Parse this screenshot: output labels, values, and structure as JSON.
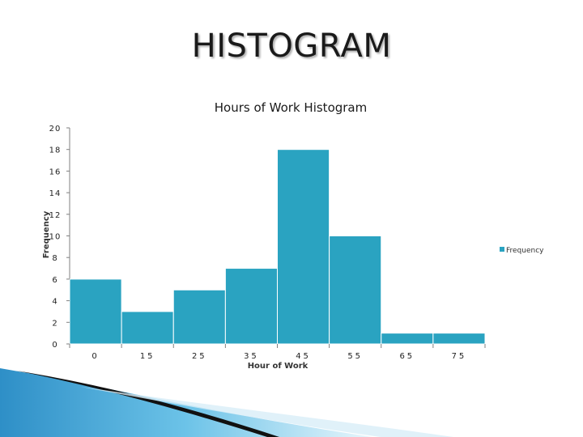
{
  "slide": {
    "title": "HISTOGRAM"
  },
  "colors": {
    "bar": "#2aa3c1",
    "bar_edge": "#ffffff",
    "axis": "#808080",
    "deco_blue": "#3ba6d6",
    "deco_dark": "#111111"
  },
  "chart_data": {
    "type": "bar",
    "title": "Hours of Work Histogram",
    "xlabel": "Hour of Work",
    "ylabel": "Frequency",
    "ylim": [
      0,
      20
    ],
    "yticks": [
      "0",
      "2",
      "4",
      "6",
      "8",
      "10",
      "12",
      "14",
      "16",
      "18",
      "20"
    ],
    "xtick_labels": [
      "0",
      "15",
      "25",
      "35",
      "45",
      "55",
      "65",
      "75"
    ],
    "series": [
      {
        "name": "Frequency",
        "values": [
          6,
          3,
          5,
          7,
          18,
          10,
          1,
          1
        ]
      }
    ],
    "legend": {
      "position": "right",
      "label": "Frequency"
    },
    "grid": false
  }
}
